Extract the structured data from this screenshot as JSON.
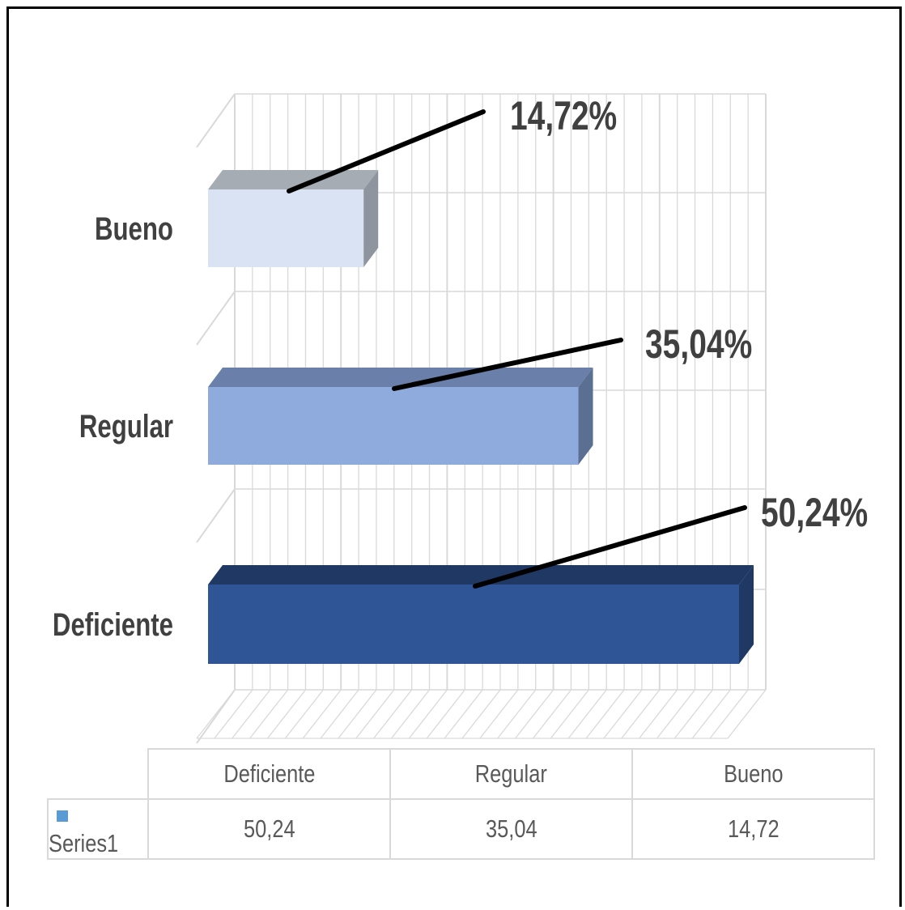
{
  "chart_data": {
    "type": "bar",
    "orientation": "horizontal",
    "style": "3d",
    "categories": [
      "Deficiente",
      "Regular",
      "Bueno"
    ],
    "series": [
      {
        "name": "Series1",
        "values": [
          50.24,
          35.04,
          14.72
        ]
      }
    ],
    "data_labels": [
      "50,24%",
      "35,04%",
      "14,72%"
    ],
    "table_values": [
      "50,24",
      "35,04",
      "14,72"
    ],
    "xlim": [
      0,
      50.24
    ],
    "grid": true,
    "legend": "data-table",
    "bar_colors": [
      "#2f5597",
      "#8faadc",
      "#dae3f3"
    ],
    "bar_side_colors": [
      "#1f3864",
      "#5b6f93",
      "#8f959f"
    ],
    "bar_top_colors": [
      "#203864",
      "#6a80aa",
      "#a6acb4"
    ],
    "legend_color": "#5b9bd5"
  }
}
